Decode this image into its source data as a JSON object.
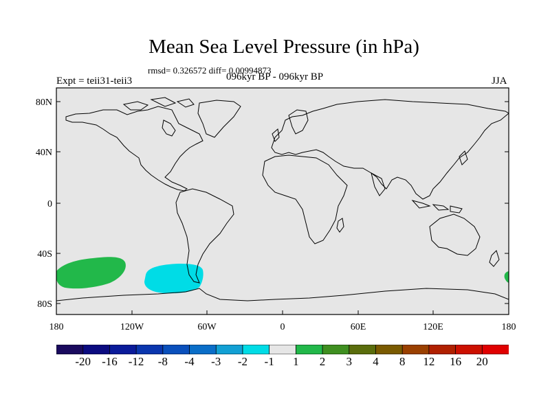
{
  "title": "Mean Sea Level Pressure (in hPa)",
  "stats": "rmsd= 0.326572 diff= 0.00994873",
  "periods": "096kyr BP - 096kyr BP",
  "experiment": "Expt = teii31-teii3",
  "season": "JJA",
  "map": {
    "projection": "cylindrical-equidistant",
    "ocean_land_fill": "#e6e6e6",
    "coastline_color": "#000000",
    "lat_labels": [
      "80N",
      "40N",
      "0",
      "40S",
      "80S"
    ],
    "lon_labels": [
      "180",
      "120W",
      "60W",
      "0",
      "60E",
      "120E",
      "180"
    ],
    "anomaly_regions": [
      {
        "name": "south-pacific-positive-anomaly",
        "level": "1 to 2",
        "color": "#22b84a",
        "center_lon": -150,
        "center_lat": -55
      },
      {
        "name": "drake-passage-negative-anomaly",
        "level": "-2 to -1",
        "color": "#00dce6",
        "center_lon": -80,
        "center_lat": -60
      },
      {
        "name": "dateline-positive-anomaly",
        "level": "1 to 2",
        "color": "#22b84a",
        "center_lon": 180,
        "center_lat": -57
      }
    ]
  },
  "colorbar": {
    "labels": [
      "-20",
      "-16",
      "-12",
      "-8",
      "-4",
      "-3",
      "-2",
      "-1",
      "1",
      "2",
      "3",
      "4",
      "8",
      "12",
      "16",
      "20"
    ],
    "colors": [
      "#1a0a5e",
      "#0b0b80",
      "#0a1b9a",
      "#0a36ae",
      "#0a50bc",
      "#0a6ec8",
      "#12a0d4",
      "#00dce6",
      "#e6e6e6",
      "#22b84a",
      "#3f8f20",
      "#5a6d0c",
      "#7a5a00",
      "#9a4000",
      "#b02000",
      "#cc1000",
      "#e00000"
    ]
  }
}
